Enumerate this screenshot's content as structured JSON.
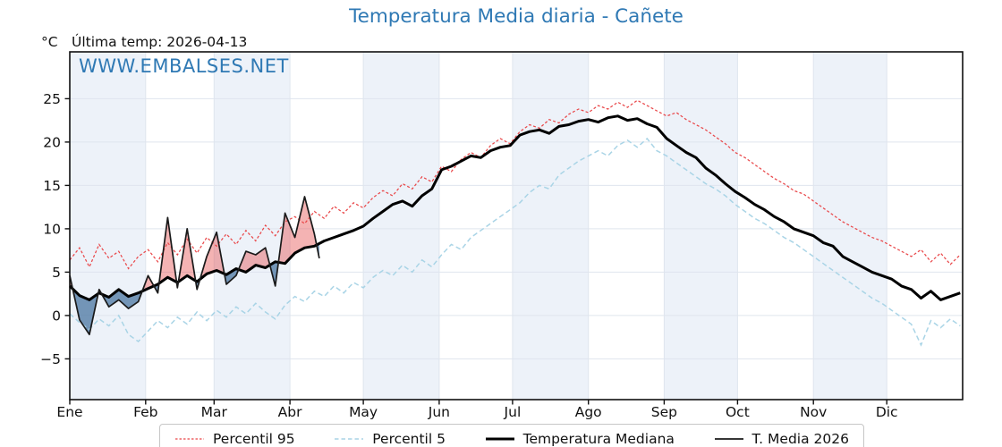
{
  "page": {
    "title": "Temperatura Media diaria - Cañete",
    "unit_label": "°C",
    "last_temp_label": "Última temp: 2026-04-13",
    "watermark": "WWW.EMBALSES.NET"
  },
  "colors": {
    "title_blue": "#2f79b4",
    "p95_red": "#e9484a",
    "p5_lightblue": "#a9d4e6",
    "median_black": "#000000",
    "t2026_black": "#1a1a1a",
    "fill_above": "rgba(231,86,86,0.45)",
    "fill_below": "rgba(58,104,152,0.68)",
    "month_band": "#edf2f9",
    "grid": "#dfe5ee",
    "spine": "#111111"
  },
  "chart_data": {
    "type": "line",
    "title": "Temperatura Media diaria - Cañete",
    "xlabel": "",
    "ylabel": "°C",
    "x_unit": "day_of_year",
    "xlim": [
      1,
      366
    ],
    "ylim": [
      -9.7,
      30.4
    ],
    "grid": true,
    "legend_position": "bottom",
    "yticks": [
      25,
      20,
      15,
      10,
      5,
      0,
      -5
    ],
    "ytick_labels": [
      "25",
      "20",
      "15",
      "10",
      "5",
      "0",
      "−5"
    ],
    "months": [
      {
        "label": "Ene",
        "start_day": 1
      },
      {
        "label": "Feb",
        "start_day": 32
      },
      {
        "label": "Mar",
        "start_day": 60
      },
      {
        "label": "Abr",
        "start_day": 91
      },
      {
        "label": "May",
        "start_day": 121
      },
      {
        "label": "Jun",
        "start_day": 152
      },
      {
        "label": "Jul",
        "start_day": 182
      },
      {
        "label": "Ago",
        "start_day": 213
      },
      {
        "label": "Sep",
        "start_day": 244
      },
      {
        "label": "Oct",
        "start_day": 274
      },
      {
        "label": "Nov",
        "start_day": 305
      },
      {
        "label": "Dic",
        "start_day": 335
      }
    ],
    "series": [
      {
        "name": "Percentil 95",
        "style": "dashed",
        "color": "#e9484a",
        "x": [
          1,
          5,
          9,
          13,
          17,
          21,
          25,
          29,
          33,
          37,
          41,
          45,
          49,
          53,
          57,
          61,
          65,
          69,
          73,
          77,
          81,
          85,
          89,
          93,
          97,
          101,
          105,
          109,
          113,
          117,
          121,
          125,
          129,
          133,
          137,
          141,
          145,
          149,
          153,
          157,
          161,
          165,
          169,
          173,
          177,
          181,
          185,
          189,
          193,
          197,
          201,
          205,
          209,
          213,
          217,
          221,
          225,
          229,
          233,
          237,
          241,
          245,
          249,
          253,
          257,
          261,
          265,
          269,
          273,
          277,
          281,
          285,
          289,
          293,
          297,
          301,
          305,
          309,
          313,
          317,
          321,
          325,
          329,
          333,
          337,
          341,
          345,
          349,
          353,
          357,
          361,
          365
        ],
        "values": [
          6.4,
          7.8,
          5.6,
          8.2,
          6.6,
          7.4,
          5.4,
          6.8,
          7.6,
          6.2,
          8.4,
          7.0,
          8.8,
          7.2,
          9.0,
          8.0,
          9.4,
          8.2,
          9.8,
          8.6,
          10.4,
          9.2,
          10.8,
          11.4,
          10.6,
          12.0,
          11.2,
          12.6,
          11.8,
          13.0,
          12.4,
          13.6,
          14.4,
          13.8,
          15.2,
          14.6,
          16.0,
          15.4,
          17.2,
          16.6,
          18.0,
          18.8,
          18.2,
          19.6,
          20.4,
          19.8,
          21.2,
          22.0,
          21.6,
          22.6,
          22.2,
          23.2,
          23.8,
          23.4,
          24.2,
          23.8,
          24.6,
          24.0,
          24.8,
          24.2,
          23.6,
          23.0,
          23.4,
          22.6,
          22.0,
          21.4,
          20.6,
          19.8,
          18.8,
          18.2,
          17.4,
          16.6,
          15.8,
          15.2,
          14.4,
          14.0,
          13.2,
          12.4,
          11.6,
          10.8,
          10.2,
          9.6,
          9.0,
          8.6,
          8.0,
          7.4,
          6.8,
          7.6,
          6.2,
          7.2,
          5.9,
          7.0
        ]
      },
      {
        "name": "Percentil 5",
        "style": "dashed",
        "color": "#a9d4e6",
        "x": [
          1,
          5,
          9,
          13,
          17,
          21,
          25,
          29,
          33,
          37,
          41,
          45,
          49,
          53,
          57,
          61,
          65,
          69,
          73,
          77,
          81,
          85,
          89,
          93,
          97,
          101,
          105,
          109,
          113,
          117,
          121,
          125,
          129,
          133,
          137,
          141,
          145,
          149,
          153,
          157,
          161,
          165,
          169,
          173,
          177,
          181,
          185,
          189,
          193,
          197,
          201,
          205,
          209,
          213,
          217,
          221,
          225,
          229,
          233,
          237,
          241,
          245,
          249,
          253,
          257,
          261,
          265,
          269,
          273,
          277,
          281,
          285,
          289,
          293,
          297,
          301,
          305,
          309,
          313,
          317,
          321,
          325,
          329,
          333,
          337,
          341,
          345,
          349,
          353,
          357,
          361,
          365
        ],
        "values": [
          0.2,
          -0.8,
          -1.6,
          -0.4,
          -1.2,
          0.0,
          -2.2,
          -3.0,
          -1.8,
          -0.6,
          -1.4,
          -0.2,
          -1.0,
          0.4,
          -0.6,
          0.6,
          -0.2,
          1.0,
          0.2,
          1.4,
          0.4,
          -0.4,
          1.2,
          2.2,
          1.6,
          2.8,
          2.2,
          3.4,
          2.6,
          3.8,
          3.2,
          4.4,
          5.2,
          4.6,
          5.8,
          5.0,
          6.4,
          5.6,
          7.0,
          8.2,
          7.6,
          9.0,
          9.8,
          10.6,
          11.4,
          12.2,
          13.0,
          14.2,
          15.0,
          14.6,
          16.2,
          17.0,
          17.8,
          18.4,
          19.0,
          18.4,
          19.6,
          20.2,
          19.4,
          20.4,
          19.0,
          18.4,
          17.6,
          16.8,
          16.0,
          15.2,
          14.6,
          13.8,
          12.8,
          12.0,
          11.2,
          10.6,
          9.8,
          9.0,
          8.4,
          7.6,
          6.8,
          6.0,
          5.2,
          4.4,
          3.6,
          2.8,
          2.0,
          1.4,
          0.6,
          -0.2,
          -1.0,
          -3.4,
          -0.6,
          -1.4,
          -0.4,
          -1.2
        ]
      },
      {
        "name": "Temperatura Mediana",
        "style": "solid-thick",
        "color": "#000000",
        "x": [
          1,
          5,
          9,
          13,
          17,
          21,
          25,
          29,
          33,
          37,
          41,
          45,
          49,
          53,
          57,
          61,
          65,
          69,
          73,
          77,
          81,
          85,
          89,
          93,
          97,
          101,
          105,
          109,
          113,
          117,
          121,
          125,
          129,
          133,
          137,
          141,
          145,
          149,
          153,
          157,
          161,
          165,
          169,
          173,
          177,
          181,
          185,
          189,
          193,
          197,
          201,
          205,
          209,
          213,
          217,
          221,
          225,
          229,
          233,
          237,
          241,
          245,
          249,
          253,
          257,
          261,
          265,
          269,
          273,
          277,
          281,
          285,
          289,
          293,
          297,
          301,
          305,
          309,
          313,
          317,
          321,
          325,
          329,
          333,
          337,
          341,
          345,
          349,
          353,
          357,
          361,
          365
        ],
        "values": [
          3.4,
          2.3,
          1.8,
          2.6,
          2.1,
          3.0,
          2.2,
          2.6,
          3.1,
          3.6,
          4.4,
          3.8,
          4.6,
          3.9,
          4.8,
          5.2,
          4.7,
          5.4,
          5.0,
          5.8,
          5.5,
          6.2,
          6.0,
          7.2,
          7.8,
          8.0,
          8.6,
          9.0,
          9.4,
          9.8,
          10.3,
          11.2,
          12.0,
          12.8,
          13.2,
          12.6,
          13.8,
          14.6,
          16.8,
          17.2,
          17.8,
          18.4,
          18.2,
          19.0,
          19.4,
          19.6,
          20.8,
          21.2,
          21.4,
          21.0,
          21.8,
          22.0,
          22.4,
          22.6,
          22.3,
          22.8,
          23.0,
          22.5,
          22.7,
          22.1,
          21.7,
          20.4,
          19.6,
          18.8,
          18.2,
          17.0,
          16.2,
          15.2,
          14.3,
          13.6,
          12.8,
          12.2,
          11.4,
          10.8,
          10.0,
          9.6,
          9.2,
          8.4,
          8.0,
          6.8,
          6.2,
          5.6,
          5.0,
          4.6,
          4.2,
          3.4,
          3.0,
          2.0,
          2.8,
          1.8,
          2.2,
          2.6
        ]
      },
      {
        "name": "T. Media 2026",
        "style": "solid-thin",
        "color": "#1a1a1a",
        "fill_above_color": "rgba(231,86,86,0.45)",
        "fill_below_color": "rgba(58,104,152,0.68)",
        "last_day": 103,
        "x": [
          1,
          5,
          9,
          13,
          17,
          21,
          25,
          29,
          33,
          37,
          41,
          45,
          49,
          53,
          57,
          61,
          65,
          69,
          73,
          77,
          81,
          85,
          89,
          93,
          97,
          101,
          103
        ],
        "values": [
          4.6,
          -0.5,
          -2.2,
          3.0,
          1.0,
          1.8,
          0.8,
          1.6,
          4.6,
          2.6,
          11.3,
          3.2,
          10.0,
          3.0,
          6.8,
          9.6,
          3.6,
          4.6,
          7.4,
          7.0,
          7.8,
          3.4,
          11.8,
          9.0,
          13.7,
          9.4,
          6.6
        ]
      }
    ]
  }
}
